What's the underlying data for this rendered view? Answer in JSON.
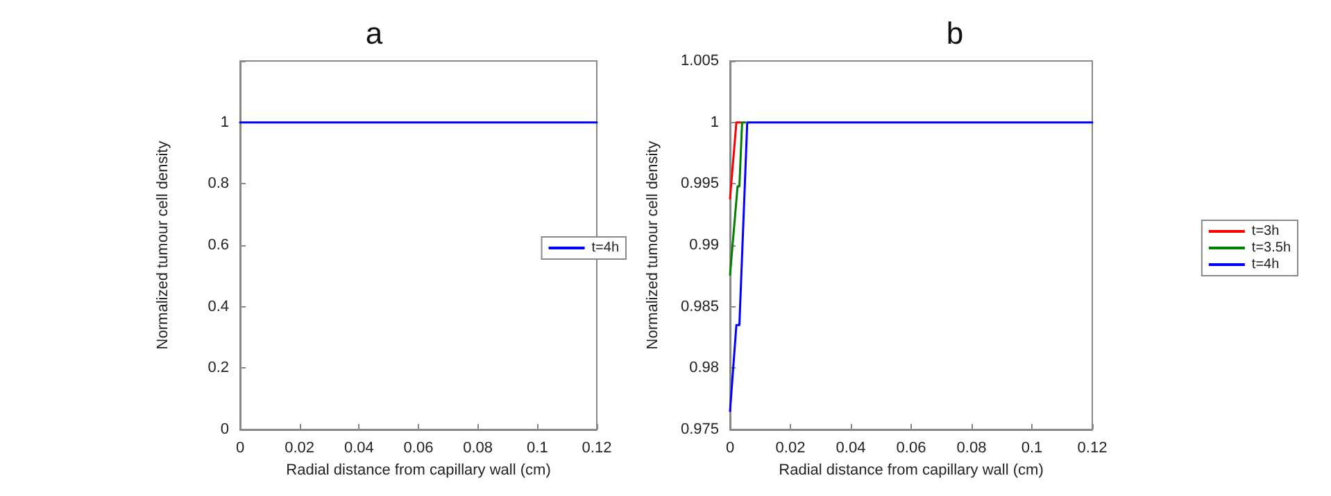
{
  "chart_data": [
    {
      "type": "line",
      "title": "a",
      "xlabel": "Radial distance from capillary wall (cm)",
      "ylabel": "Normalized tumour cell density",
      "xlim": [
        0,
        0.12
      ],
      "xticks": [
        0,
        0.02,
        0.04,
        0.06,
        0.08,
        0.1,
        0.12
      ],
      "ylim": [
        0,
        1.2
      ],
      "yticks": [
        0,
        0.2,
        0.4,
        0.6,
        0.8,
        1,
        {
          "value": 1.2,
          "label": null
        }
      ],
      "grid": false,
      "legend": "right",
      "series": [
        {
          "name": "t=4h",
          "color": "#0000ff",
          "x": [
            0,
            0.12
          ],
          "values": [
            1,
            1
          ]
        }
      ]
    },
    {
      "type": "line",
      "title": "b",
      "xlabel": "Radial distance from capillary wall (cm)",
      "ylabel": "Normalized tumour cell density",
      "xlim": [
        0,
        0.12
      ],
      "xticks": [
        0,
        0.02,
        0.04,
        0.06,
        0.08,
        0.1,
        0.12
      ],
      "ylim": [
        0.975,
        1.005
      ],
      "yticks": [
        0.975,
        0.98,
        0.985,
        0.99,
        0.995,
        1,
        1.005
      ],
      "grid": false,
      "legend": "right",
      "series": [
        {
          "name": "t=3h",
          "color": "#ff0000",
          "x": [
            0,
            0.0021,
            0.0035
          ],
          "values": [
            0.9938,
            1,
            1
          ]
        },
        {
          "name": "t=3.5h",
          "color": "#008000",
          "x": [
            0,
            0.0025,
            0.0031,
            0.004,
            0.005
          ],
          "values": [
            0.9876,
            0.9948,
            0.9948,
            1,
            1
          ]
        },
        {
          "name": "t=4h",
          "color": "#0000ff",
          "x": [
            0,
            0.0021,
            0.0031,
            0.0057,
            0.12
          ],
          "values": [
            0.9765,
            0.9835,
            0.9835,
            1,
            1
          ]
        }
      ]
    }
  ]
}
